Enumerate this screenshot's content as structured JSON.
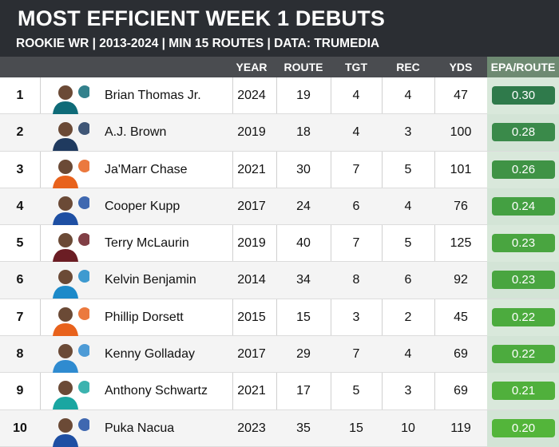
{
  "title": "MOST EFFICIENT WEEK 1 DEBUTS",
  "subtitle": "ROOKIE WR | 2013-2024 | MIN 15 ROUTES | DATA: TRUMEDIA",
  "chart_data": {
    "type": "table",
    "columns": [
      "",
      "",
      "",
      "YEAR",
      "ROUTE",
      "TGT",
      "REC",
      "YDS",
      "EPA/ROUTE"
    ],
    "rows": [
      {
        "rank": "1",
        "name": "Brian Thomas Jr.",
        "year": "2024",
        "route": "19",
        "tgt": "4",
        "rec": "4",
        "yds": "47",
        "epa": "0.30",
        "team_logo": "jaguars-logo",
        "team_color": "#0f6b78",
        "pill_color": "#2f7a4b"
      },
      {
        "rank": "2",
        "name": "A.J. Brown",
        "year": "2019",
        "route": "18",
        "tgt": "4",
        "rec": "3",
        "yds": "100",
        "epa": "0.28",
        "team_logo": "titans-logo",
        "team_color": "#1f3a5f",
        "pill_color": "#3a8a4a"
      },
      {
        "rank": "3",
        "name": "Ja'Marr Chase",
        "year": "2021",
        "route": "30",
        "tgt": "7",
        "rec": "5",
        "yds": "101",
        "epa": "0.26",
        "team_logo": "bengals-logo",
        "team_color": "#e8621c",
        "pill_color": "#3f9345"
      },
      {
        "rank": "4",
        "name": "Cooper Kupp",
        "year": "2017",
        "route": "24",
        "tgt": "6",
        "rec": "4",
        "yds": "76",
        "epa": "0.24",
        "team_logo": "rams-logo",
        "team_color": "#1e4fa3",
        "pill_color": "#44a042"
      },
      {
        "rank": "5",
        "name": "Terry McLaurin",
        "year": "2019",
        "route": "40",
        "tgt": "7",
        "rec": "5",
        "yds": "125",
        "epa": "0.23",
        "team_logo": "commanders-logo",
        "team_color": "#6b1d24",
        "pill_color": "#49a540"
      },
      {
        "rank": "6",
        "name": "Kelvin Benjamin",
        "year": "2014",
        "route": "34",
        "tgt": "8",
        "rec": "6",
        "yds": "92",
        "epa": "0.23",
        "team_logo": "panthers-logo",
        "team_color": "#1d8ac9",
        "pill_color": "#49a540"
      },
      {
        "rank": "7",
        "name": "Phillip Dorsett",
        "year": "2015",
        "route": "15",
        "tgt": "3",
        "rec": "2",
        "yds": "45",
        "epa": "0.22",
        "team_logo": "colts-logo",
        "team_color": "#e8621c",
        "pill_color": "#4cab3e"
      },
      {
        "rank": "8",
        "name": "Kenny Golladay",
        "year": "2017",
        "route": "29",
        "tgt": "7",
        "rec": "4",
        "yds": "69",
        "epa": "0.22",
        "team_logo": "lions-logo",
        "team_color": "#2f8bd0",
        "pill_color": "#4cab3e"
      },
      {
        "rank": "9",
        "name": "Anthony Schwartz",
        "year": "2021",
        "route": "17",
        "tgt": "5",
        "rec": "3",
        "yds": "69",
        "epa": "0.21",
        "team_logo": "browns-logo",
        "team_color": "#1aa6a1",
        "pill_color": "#50b03c"
      },
      {
        "rank": "10",
        "name": "Puka Nacua",
        "year": "2023",
        "route": "35",
        "tgt": "15",
        "rec": "10",
        "yds": "119",
        "epa": "0.20",
        "team_logo": "rams-logo",
        "team_color": "#1e4fa3",
        "pill_color": "#53b53a"
      }
    ]
  }
}
